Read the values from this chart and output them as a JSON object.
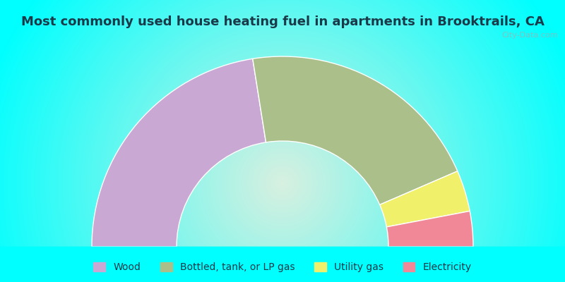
{
  "title": "Most commonly used house heating fuel in apartments in Brooktrails, CA",
  "background_color": "#00FFFF",
  "segments": [
    {
      "label": "Wood",
      "value": 45,
      "color": "#C9A8D4"
    },
    {
      "label": "Bottled, tank, or LP gas",
      "value": 42,
      "color": "#AABF8A"
    },
    {
      "label": "Utility gas",
      "value": 7,
      "color": "#F0F06A"
    },
    {
      "label": "Electricity",
      "value": 6,
      "color": "#F08898"
    }
  ],
  "title_color": "#1a3a4a",
  "title_fontsize": 13,
  "legend_fontsize": 10,
  "watermark": "City-Data.com"
}
